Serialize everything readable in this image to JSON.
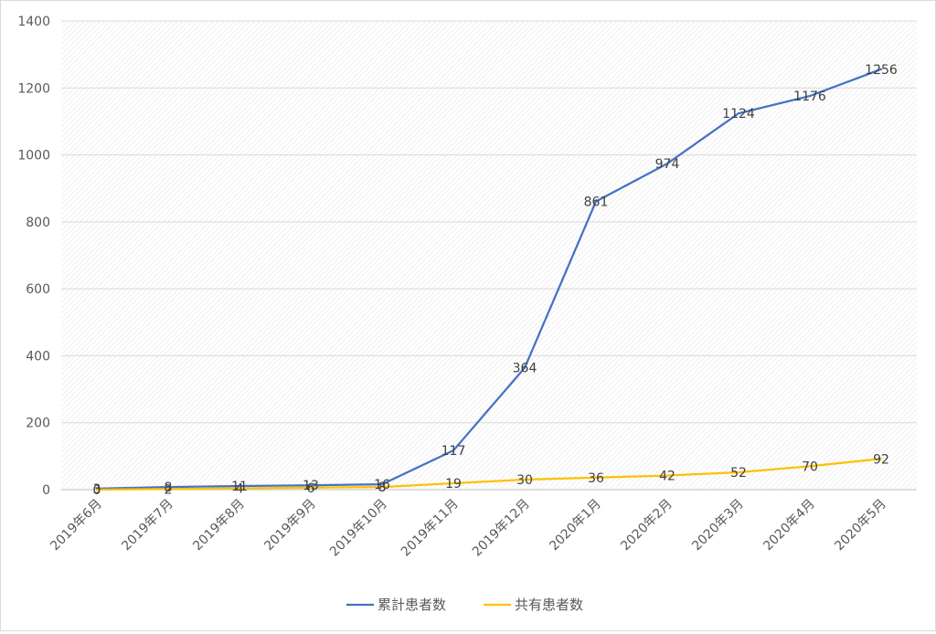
{
  "chart_data": {
    "type": "line",
    "categories": [
      "2019年6月",
      "2019年7月",
      "2019年8月",
      "2019年9月",
      "2019年10月",
      "2019年11月",
      "2019年12月",
      "2020年1月",
      "2020年2月",
      "2020年3月",
      "2020年4月",
      "2020年5月"
    ],
    "series": [
      {
        "name": "累計患者数",
        "color": "#4472C4",
        "values": [
          3,
          8,
          11,
          13,
          16,
          117,
          364,
          861,
          974,
          1124,
          1176,
          1256
        ]
      },
      {
        "name": "共有患者数",
        "color": "#FFC000",
        "values": [
          0,
          2,
          4,
          6,
          8,
          19,
          30,
          36,
          42,
          52,
          70,
          92
        ]
      }
    ],
    "ylim": [
      0,
      1400
    ],
    "yticks": [
      0,
      200,
      400,
      600,
      800,
      1000,
      1200,
      1400
    ],
    "grid": true,
    "legend": "bottom"
  }
}
